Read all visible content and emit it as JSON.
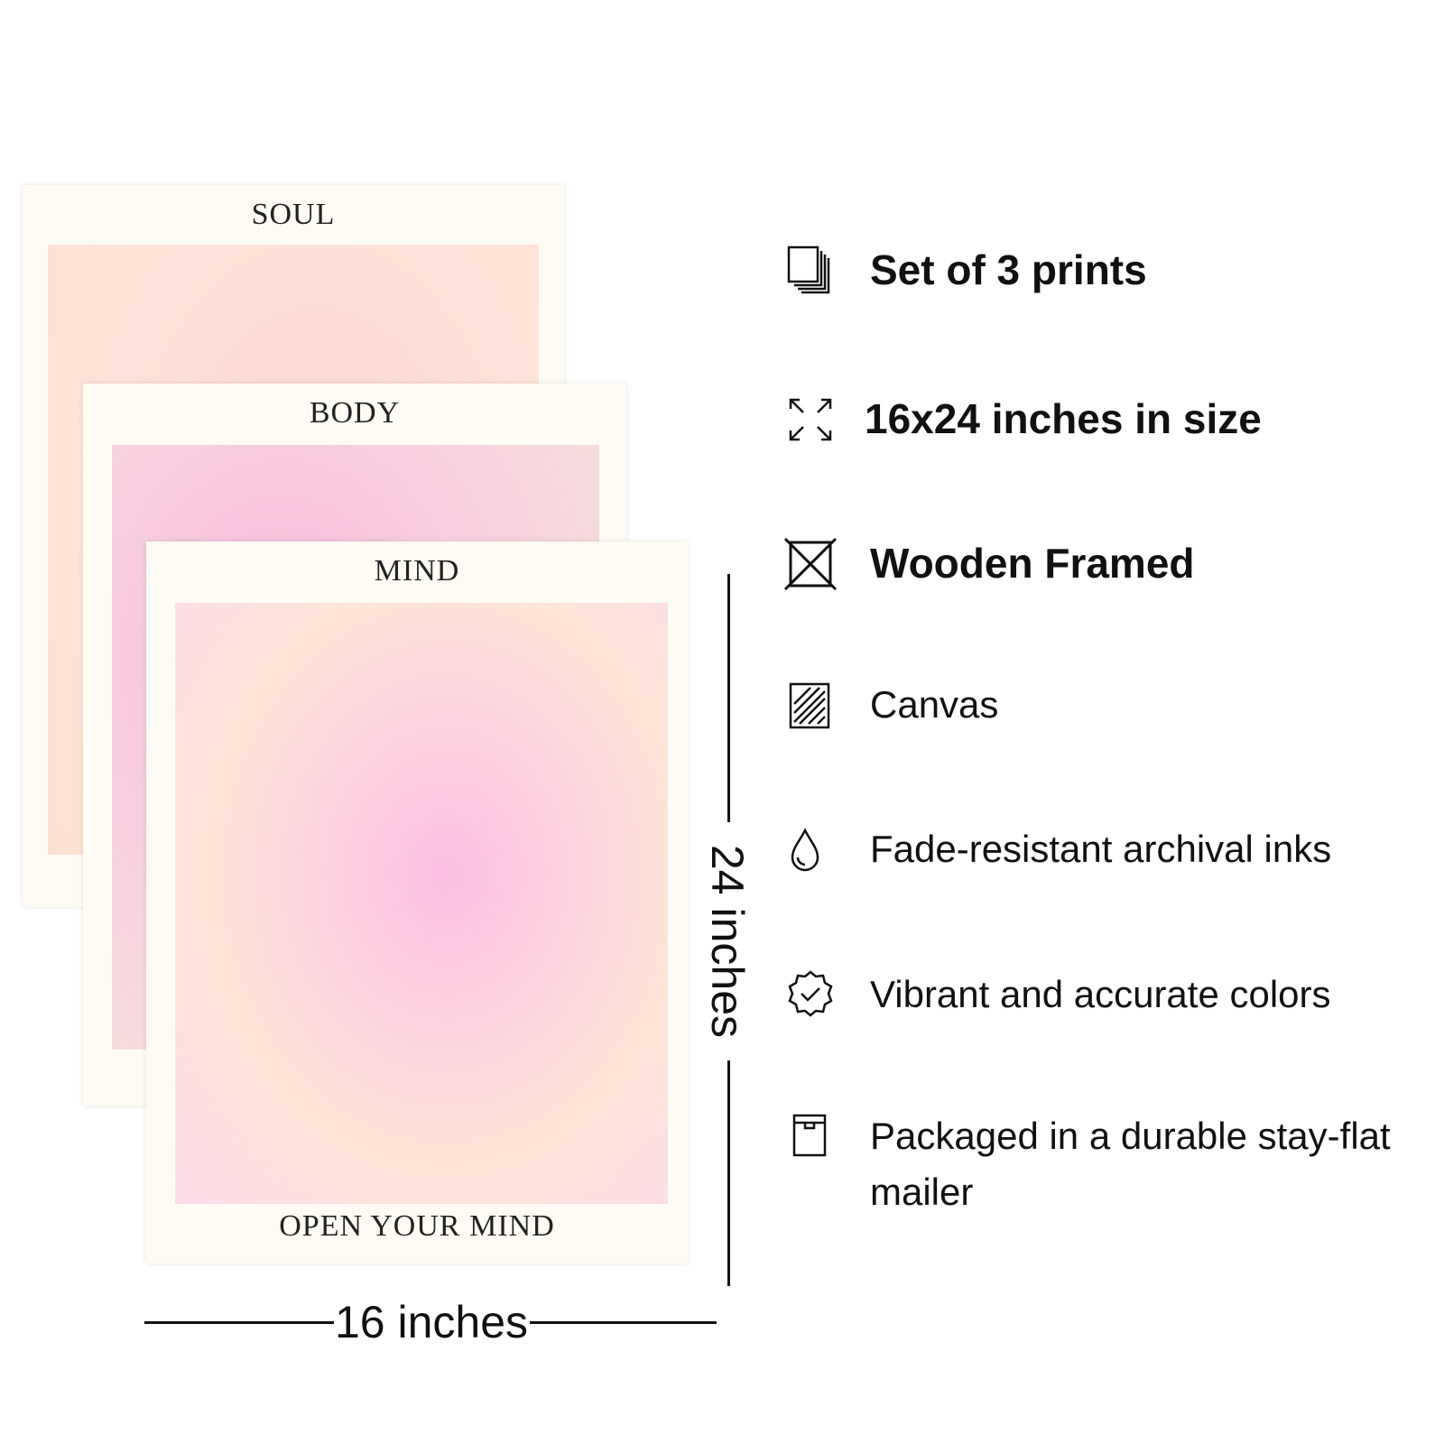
{
  "prints": {
    "soul": {
      "title": "SOUL"
    },
    "body": {
      "title": "BODY"
    },
    "mind": {
      "title": "MIND",
      "caption": "OPEN YOUR MIND"
    }
  },
  "dimensions": {
    "height_label": "24 inches",
    "width_label": "16 inches"
  },
  "features": [
    {
      "icon": "stacked-pages-icon",
      "text": "Set of 3 prints"
    },
    {
      "icon": "expand-arrows-icon",
      "text": "16x24 inches in size"
    },
    {
      "icon": "framed-box-icon",
      "text": "Wooden Framed"
    },
    {
      "icon": "canvas-hatch-icon",
      "text": "Canvas"
    },
    {
      "icon": "ink-drop-icon",
      "text": "Fade-resistant archival inks"
    },
    {
      "icon": "verified-badge-icon",
      "text": "Vibrant and accurate colors"
    },
    {
      "icon": "mailer-box-icon",
      "text": "Packaged in a durable stay-flat mailer"
    }
  ],
  "colors": {
    "background": "#ffffff",
    "print_border": "#fdfbf3",
    "soul_tone": "#fbd7d3",
    "body_tone": "#f6b9d8",
    "mind_tone": "#fbbfe3",
    "text": "#111111"
  }
}
